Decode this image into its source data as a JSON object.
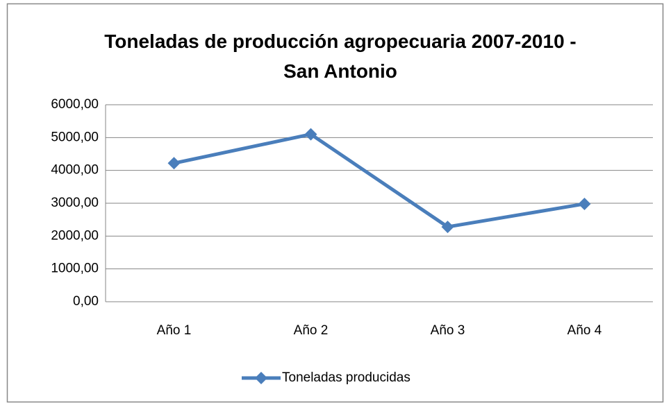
{
  "chart_data": {
    "type": "line",
    "title": "Toneladas de producción agropecuaria 2007-2010 - San Antonio",
    "categories": [
      "Año 1",
      "Año 2",
      "Año 3",
      "Año 4"
    ],
    "series": [
      {
        "name": "Toneladas producidas",
        "color": "#4a7ebb",
        "values": [
          4220,
          5100,
          2280,
          2980
        ]
      }
    ],
    "ylim": [
      0,
      6000
    ],
    "yticks": [
      {
        "value": 0,
        "label": "0,00"
      },
      {
        "value": 1000,
        "label": "1000,00"
      },
      {
        "value": 2000,
        "label": "2000,00"
      },
      {
        "value": 3000,
        "label": "3000,00"
      },
      {
        "value": 4000,
        "label": "4000,00"
      },
      {
        "value": 5000,
        "label": "5000,00"
      },
      {
        "value": 6000,
        "label": "6000,00"
      }
    ],
    "grid": true,
    "legend": "bottom"
  }
}
